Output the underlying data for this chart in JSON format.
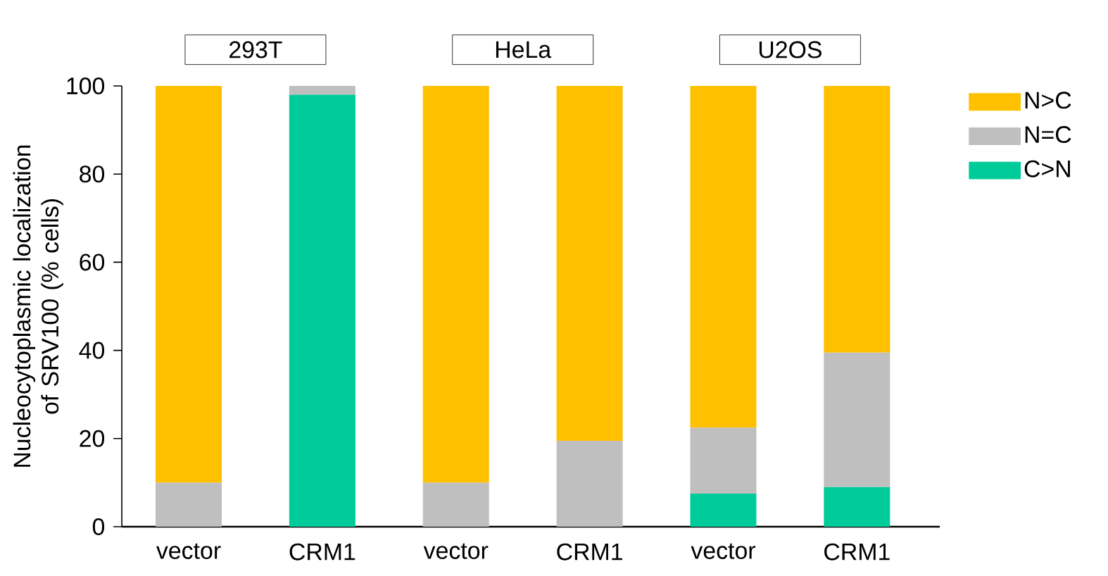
{
  "chart_data": {
    "type": "bar",
    "stacked": true,
    "ylabel": "Nucleocytoplasmic localization of SRV100 (% cells)",
    "categories": [
      "vector",
      "CRM1",
      "vector",
      "CRM1",
      "vector",
      "CRM1"
    ],
    "series": [
      {
        "name": "C>N",
        "color": "#00cc99",
        "values": [
          0,
          98,
          0,
          0,
          7.5,
          9
        ]
      },
      {
        "name": "N=C",
        "color": "#bfbfbf",
        "values": [
          10,
          2,
          10,
          19.5,
          15,
          30.5
        ]
      },
      {
        "name": "N>C",
        "color": "#ffc000",
        "values": [
          90,
          0,
          90,
          80.5,
          77.5,
          60.5
        ]
      }
    ],
    "annotations": [
      "293T",
      "HeLa",
      "U2OS"
    ],
    "ylim": [
      0,
      100
    ],
    "yticks": [
      0,
      20,
      40,
      60,
      80,
      100
    ],
    "legend": "right"
  }
}
